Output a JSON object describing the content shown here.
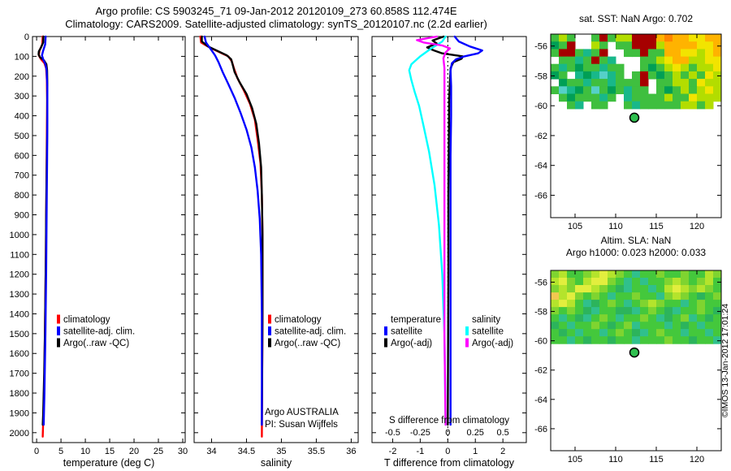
{
  "figure": {
    "title_line1": "Argo profile: CS 5903245_71 09-Jan-2012 20120109_273 60.858S 112.474E",
    "title_line2": "Climatology: CARS2009. Satellite-adjusted climatology: synTS_20120107.nc (2.2d earlier)"
  },
  "chart_data": [
    {
      "id": "temp-profile",
      "type": "line",
      "xlabel": "temperature (deg C)",
      "xlim": [
        -0.85,
        30.5
      ],
      "xticks": [
        0,
        5,
        10,
        15,
        20,
        25,
        30
      ],
      "ylim": [
        0,
        2050
      ],
      "yticks": [
        0,
        100,
        200,
        300,
        400,
        500,
        600,
        700,
        800,
        900,
        1000,
        1100,
        1200,
        1300,
        1400,
        1500,
        1600,
        1700,
        1800,
        1900,
        2000
      ],
      "show_ytick_labels": true,
      "legend": [
        {
          "label": "climatology",
          "color": "#ff0000"
        },
        {
          "label": "satellite-adj. clim.",
          "color": "#0000ff"
        },
        {
          "label": "Argo(..raw -QC)",
          "color": "#000000"
        }
      ],
      "series": [
        {
          "name": "climatology",
          "color": "#ff0000",
          "points": [
            [
              1.25,
              0
            ],
            [
              1.15,
              40
            ],
            [
              0.6,
              70
            ],
            [
              0.45,
              95
            ],
            [
              0.9,
              115
            ],
            [
              1.6,
              135
            ],
            [
              1.95,
              160
            ],
            [
              2.1,
              220
            ],
            [
              2.15,
              320
            ],
            [
              2.1,
              500
            ],
            [
              2.0,
              800
            ],
            [
              1.9,
              1100
            ],
            [
              1.75,
              1400
            ],
            [
              1.6,
              1700
            ],
            [
              1.4,
              1900
            ],
            [
              1.25,
              2020
            ]
          ]
        },
        {
          "name": "Argo(..raw -QC)",
          "color": "#000000",
          "points": [
            [
              1.4,
              0
            ],
            [
              1.35,
              30
            ],
            [
              0.9,
              55
            ],
            [
              0.45,
              75
            ],
            [
              0.4,
              90
            ],
            [
              0.7,
              105
            ],
            [
              1.5,
              120
            ],
            [
              2.0,
              140
            ],
            [
              2.15,
              170
            ],
            [
              2.2,
              250
            ],
            [
              2.2,
              350
            ],
            [
              2.15,
              500
            ],
            [
              2.05,
              700
            ],
            [
              1.95,
              900
            ],
            [
              1.9,
              1100
            ],
            [
              1.8,
              1300
            ],
            [
              1.7,
              1500
            ],
            [
              1.55,
              1700
            ],
            [
              1.35,
              1900
            ],
            [
              1.25,
              1960
            ]
          ]
        },
        {
          "name": "satellite-adj. clim.",
          "color": "#0000ff",
          "points": [
            [
              1.85,
              0
            ],
            [
              1.75,
              40
            ],
            [
              1.3,
              75
            ],
            [
              1.1,
              95
            ],
            [
              1.35,
              115
            ],
            [
              1.8,
              140
            ],
            [
              2.05,
              170
            ],
            [
              2.2,
              260
            ],
            [
              2.2,
              420
            ],
            [
              2.15,
              620
            ],
            [
              2.05,
              900
            ],
            [
              1.95,
              1200
            ],
            [
              1.8,
              1500
            ],
            [
              1.6,
              1800
            ],
            [
              1.45,
              1960
            ]
          ]
        }
      ]
    },
    {
      "id": "sal-profile",
      "type": "line",
      "xlabel": "salinity",
      "xlim": [
        33.75,
        36.1
      ],
      "xticks": [
        34,
        34.5,
        35,
        35.5,
        36
      ],
      "ylim": [
        0,
        2050
      ],
      "yticks": [
        0,
        100,
        200,
        300,
        400,
        500,
        600,
        700,
        800,
        900,
        1000,
        1100,
        1200,
        1300,
        1400,
        1500,
        1600,
        1700,
        1800,
        1900,
        2000
      ],
      "show_ytick_labels": false,
      "legend": [
        {
          "label": "climatology",
          "color": "#ff0000"
        },
        {
          "label": "satellite-adj. clim.",
          "color": "#0000ff"
        },
        {
          "label": "Argo(..raw -QC)",
          "color": "#000000"
        }
      ],
      "notes": [
        "Argo AUSTRALIA",
        "PI: Susan Wijffels"
      ],
      "series": [
        {
          "name": "climatology",
          "color": "#ff0000",
          "points": [
            [
              33.84,
              0
            ],
            [
              33.85,
              30
            ],
            [
              33.97,
              55
            ],
            [
              34.12,
              80
            ],
            [
              34.24,
              100
            ],
            [
              34.29,
              125
            ],
            [
              34.32,
              160
            ],
            [
              34.37,
              210
            ],
            [
              34.46,
              270
            ],
            [
              34.55,
              340
            ],
            [
              34.62,
              420
            ],
            [
              34.66,
              520
            ],
            [
              34.7,
              640
            ],
            [
              34.72,
              800
            ],
            [
              34.73,
              1000
            ],
            [
              34.73,
              1400
            ],
            [
              34.72,
              2020
            ]
          ]
        },
        {
          "name": "Argo(..raw -QC)",
          "color": "#000000",
          "points": [
            [
              33.86,
              0
            ],
            [
              33.86,
              25
            ],
            [
              33.95,
              50
            ],
            [
              34.1,
              75
            ],
            [
              34.22,
              95
            ],
            [
              34.28,
              115
            ],
            [
              34.3,
              140
            ],
            [
              34.33,
              180
            ],
            [
              34.4,
              230
            ],
            [
              34.5,
              290
            ],
            [
              34.58,
              360
            ],
            [
              34.64,
              440
            ],
            [
              34.68,
              540
            ],
            [
              34.71,
              660
            ],
            [
              34.72,
              800
            ],
            [
              34.73,
              1000
            ],
            [
              34.73,
              1400
            ],
            [
              34.72,
              1960
            ]
          ]
        },
        {
          "name": "satellite-adj. clim.",
          "color": "#0000ff",
          "points": [
            [
              33.9,
              0
            ],
            [
              33.92,
              30
            ],
            [
              33.98,
              60
            ],
            [
              34.05,
              95
            ],
            [
              34.1,
              130
            ],
            [
              34.16,
              180
            ],
            [
              34.24,
              240
            ],
            [
              34.33,
              310
            ],
            [
              34.42,
              390
            ],
            [
              34.5,
              470
            ],
            [
              34.57,
              560
            ],
            [
              34.62,
              660
            ],
            [
              34.66,
              780
            ],
            [
              34.69,
              920
            ],
            [
              34.71,
              1100
            ],
            [
              34.72,
              1400
            ],
            [
              34.72,
              1960
            ]
          ]
        }
      ]
    },
    {
      "id": "diff-profile",
      "type": "line",
      "xlabel": "T difference from climatology",
      "xlim": [
        -2.75,
        2.85
      ],
      "xticks": [
        -2,
        -1,
        0,
        1,
        2
      ],
      "ylim": [
        0,
        2050
      ],
      "yticks": [
        0,
        100,
        200,
        300,
        400,
        500,
        600,
        700,
        800,
        900,
        1000,
        1100,
        1200,
        1300,
        1400,
        1500,
        1600,
        1700,
        1800,
        1900,
        2000
      ],
      "show_ytick_labels": false,
      "zero_line": true,
      "secondary_axis": {
        "label": "S difference from climatology",
        "ticks": [
          -0.5,
          -0.25,
          0,
          0.25,
          0.5
        ],
        "scale": 4
      },
      "legend_groups": [
        {
          "header": "temperature",
          "entries": [
            {
              "label": "satellite",
              "color": "#0000ff"
            },
            {
              "label": "Argo(-adj)",
              "color": "#000000"
            }
          ]
        },
        {
          "header": "salinity",
          "entries": [
            {
              "label": "satellite",
              "color": "#00ffff"
            },
            {
              "label": "Argo(-adj)",
              "color": "#ff00ff"
            }
          ]
        }
      ],
      "series": [
        {
          "name": "T Argo(-adj)",
          "color": "#000000",
          "scale": 1,
          "points": [
            [
              -0.15,
              0
            ],
            [
              -0.55,
              20
            ],
            [
              -0.4,
              35
            ],
            [
              -0.75,
              55
            ],
            [
              -0.5,
              70
            ],
            [
              -0.2,
              85
            ],
            [
              0.55,
              100
            ],
            [
              0.5,
              112
            ],
            [
              0.2,
              130
            ],
            [
              0.1,
              160
            ],
            [
              0.08,
              220
            ],
            [
              0.05,
              320
            ],
            [
              0.04,
              500
            ],
            [
              0.02,
              800
            ],
            [
              0.02,
              1200
            ],
            [
              0,
              1960
            ]
          ]
        },
        {
          "name": "T satellite",
          "color": "#0000ff",
          "scale": 1,
          "points": [
            [
              0.25,
              0
            ],
            [
              0.4,
              25
            ],
            [
              0.8,
              50
            ],
            [
              1.25,
              70
            ],
            [
              1.1,
              85
            ],
            [
              0.6,
              100
            ],
            [
              0.3,
              115
            ],
            [
              0.15,
              135
            ],
            [
              0.1,
              170
            ],
            [
              0.12,
              250
            ],
            [
              0.12,
              400
            ],
            [
              0.1,
              600
            ],
            [
              0.1,
              900
            ],
            [
              0.1,
              1300
            ],
            [
              0.1,
              1960
            ]
          ]
        },
        {
          "name": "S satellite",
          "color": "#00ffff",
          "scale": 4,
          "points": [
            [
              -0.02,
              0
            ],
            [
              -0.05,
              25
            ],
            [
              -0.15,
              60
            ],
            [
              -0.25,
              100
            ],
            [
              -0.33,
              140
            ],
            [
              -0.35,
              170
            ],
            [
              -0.33,
              220
            ],
            [
              -0.3,
              280
            ],
            [
              -0.26,
              350
            ],
            [
              -0.22,
              450
            ],
            [
              -0.17,
              580
            ],
            [
              -0.12,
              750
            ],
            [
              -0.08,
              950
            ],
            [
              -0.05,
              1200
            ],
            [
              -0.03,
              1500
            ],
            [
              -0.02,
              1960
            ]
          ]
        },
        {
          "name": "S Argo(-adj)",
          "color": "#ff00ff",
          "scale": 4,
          "points": [
            [
              -0.1,
              0
            ],
            [
              -0.28,
              18
            ],
            [
              -0.22,
              30
            ],
            [
              -0.05,
              45
            ],
            [
              0.02,
              60
            ],
            [
              -0.02,
              80
            ],
            [
              -0.04,
              110
            ],
            [
              -0.03,
              160
            ],
            [
              -0.03,
              250
            ],
            [
              -0.03,
              400
            ],
            [
              -0.03,
              700
            ],
            [
              -0.03,
              1100
            ],
            [
              -0.03,
              1500
            ],
            [
              -0.02,
              1960
            ]
          ]
        }
      ]
    },
    {
      "id": "sst-map",
      "type": "heatmap",
      "title": "sat. SST: NaN Argo: 0.702",
      "xlim": [
        102,
        123
      ],
      "ylim": [
        -55.2,
        -67.5
      ],
      "xticks": [
        105,
        110,
        115,
        120
      ],
      "yticks": [
        -56,
        -58,
        -60,
        -62,
        -64,
        -66
      ],
      "grid": {
        "lat_top": -55.2,
        "lat_bottom": -60.2,
        "rows": [
          "gygwwgrgyyrrroOooYYoo",
          "GgrwwygwggrrryooooYYo",
          "grrgtgrwwggrggooYYyYo",
          "wggtgrgtwwwggyYooyyYY",
          "gtgGggtggwwgGgyYygyyY",
          "GgwtGtctgwgrgGgygygYy",
          "wGggtggtgggrwggyygYyy",
          "gctGgcgGgtggwgGgygyYy",
          "wgGgggtgwtggggyggYyyy",
          "wwgtwggwwgtgggggyygyw"
        ]
      },
      "palette": {
        "g": "#3fbf3f",
        "G": "#009f55",
        "t": "#18b88a",
        "c": "#55d0c8",
        "y": "#b3dd00",
        "Y": "#f2e400",
        "o": "#ffb300",
        "O": "#ff8400",
        "r": "#a60000",
        "w": "#ffffff"
      },
      "marker": {
        "lon": 112.3,
        "lat": -60.8,
        "color": "#2fbf4f"
      }
    },
    {
      "id": "sla-map",
      "type": "heatmap",
      "title": "Altim. SLA: NaN",
      "title2": "Argo h1000: 0.023 h2000: 0.033",
      "watermark": "©IMOS 13-Jan-2012 17:01:24",
      "xlim": [
        102,
        123
      ],
      "ylim": [
        -55.2,
        -67.5
      ],
      "xticks": [
        105,
        110,
        115,
        120
      ],
      "yticks": [
        -56,
        -58,
        -60,
        -62,
        -64,
        -66
      ],
      "grid": {
        "lat_top": -55.2,
        "lat_bottom": -60.2,
        "rows": [
          "lygglyYylgtgglgglggyl",
          "yYlgyYYlgtgtgglylglyg",
          "lylYYylgGtggtgyYylylg",
          "oyYlglgtgglggtlylgGgl",
          "yYygtGglgtglylggtglgg",
          "lglgGtggGGtglgGtgglgG",
          "gtgGtglgtgglgtGgltgGg",
          "GgtgglgGgltgggtgGgtgg",
          "gGgtggtglgGtglggtggtg",
          "ggtgGggGggtggglggGggt"
        ]
      },
      "palette": {
        "g": "#44c83c",
        "l": "#7fd430",
        "y": "#b4e42c",
        "Y": "#e2ee3e",
        "G": "#2cb45c",
        "t": "#30c08c",
        "o": "#f2c850",
        "w": "#ffffff"
      },
      "marker": {
        "lon": 112.3,
        "lat": -60.8,
        "color": "#2fbf4f"
      }
    }
  ]
}
